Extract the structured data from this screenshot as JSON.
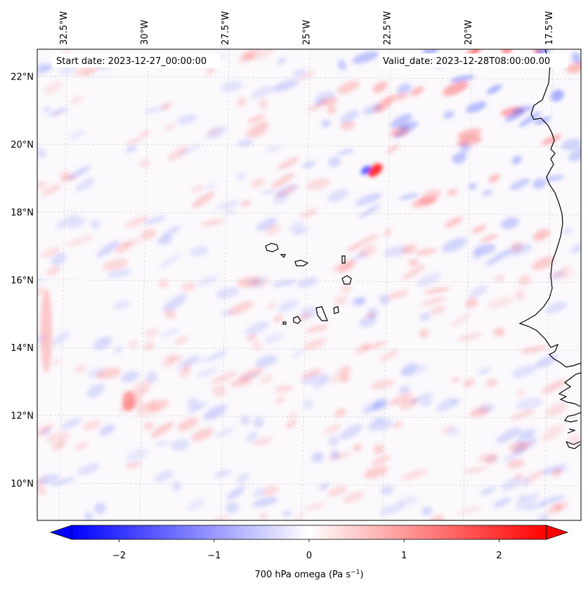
{
  "map": {
    "start_date_label": "Start date: 2023-12-27_00:00:00",
    "valid_date_label": "Valid_date: 2023-12-28T08:00:00.00",
    "field": "700 hPa omega",
    "lon_labels": [
      "32.5°W",
      "30°W",
      "27.5°W",
      "25°W",
      "22.5°W",
      "20°W",
      "17.5°W"
    ],
    "lon_values": [
      -32.5,
      -30,
      -27.5,
      -25,
      -22.5,
      -20,
      -17.5
    ],
    "lat_labels": [
      "22°N",
      "20°N",
      "18°N",
      "16°N",
      "14°N",
      "12°N",
      "10°N"
    ],
    "lat_values": [
      22,
      20,
      18,
      16,
      14,
      12,
      10
    ],
    "extent": {
      "lon_min": -33.3,
      "lon_max": -16.5,
      "lat_min": 8.9,
      "lat_max": 22.8
    },
    "gridlines": true,
    "coastline_color": "#000000"
  },
  "colorbar": {
    "label_prefix": "700 hPa omega (Pa s",
    "label_exp": "−1",
    "label_suffix": ")",
    "tick_labels": [
      "−2",
      "−1",
      "0",
      "1",
      "2"
    ],
    "tick_values": [
      -2,
      -1,
      0,
      1,
      2
    ],
    "vmin": -2.5,
    "vmax": 2.5,
    "colormap": "bwr",
    "low_color": "#0000ff",
    "mid_color": "#ffffff",
    "high_color": "#ff0000",
    "extend": "both"
  }
}
